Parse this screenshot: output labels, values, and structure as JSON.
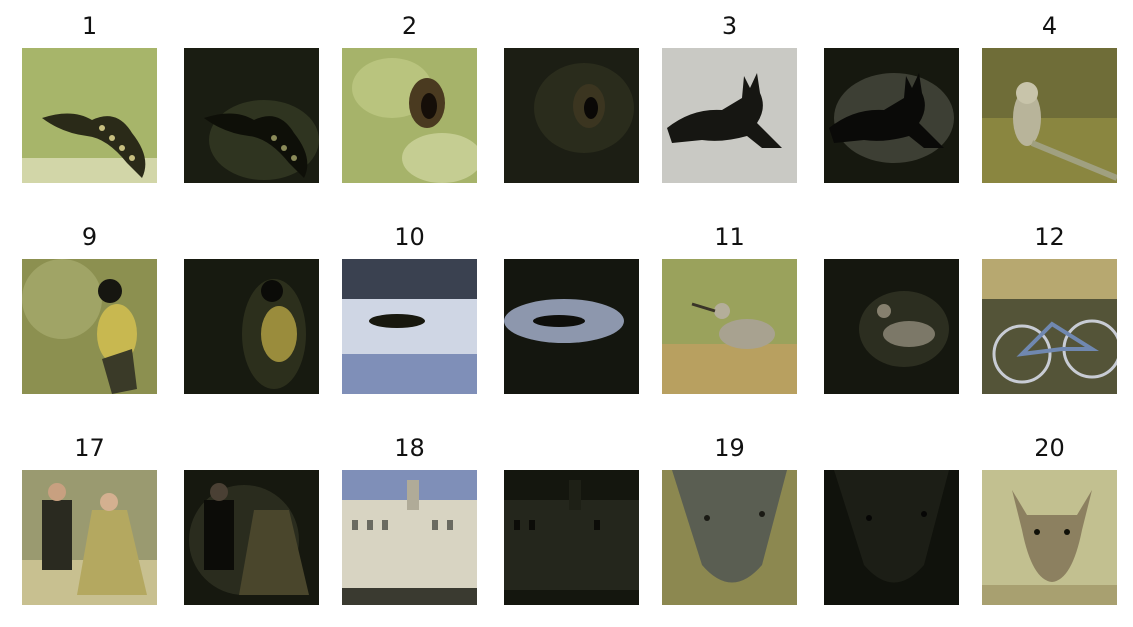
{
  "rows": [
    {
      "pairs": [
        {
          "label": "1",
          "scene": "salamander"
        },
        {
          "label": "2",
          "scene": "hole"
        },
        {
          "label": "3",
          "scene": "dog"
        },
        {
          "label": "4",
          "scene": "owl"
        }
      ]
    },
    {
      "pairs": [
        {
          "label": "9",
          "scene": "songbird"
        },
        {
          "label": "10",
          "scene": "seal-waves"
        },
        {
          "label": "11",
          "scene": "sandpiper"
        },
        {
          "label": "12",
          "scene": "bicycle"
        }
      ]
    },
    {
      "pairs": [
        {
          "label": "17",
          "scene": "couple"
        },
        {
          "label": "18",
          "scene": "building"
        },
        {
          "label": "19",
          "scene": "snout"
        },
        {
          "label": "20",
          "scene": "llama"
        }
      ]
    }
  ],
  "colors": {
    "mask_dark": "#141810",
    "olive_light": "#b8c27a",
    "olive_mid": "#8a9a50",
    "sky_blue": "#7f8fb8"
  }
}
